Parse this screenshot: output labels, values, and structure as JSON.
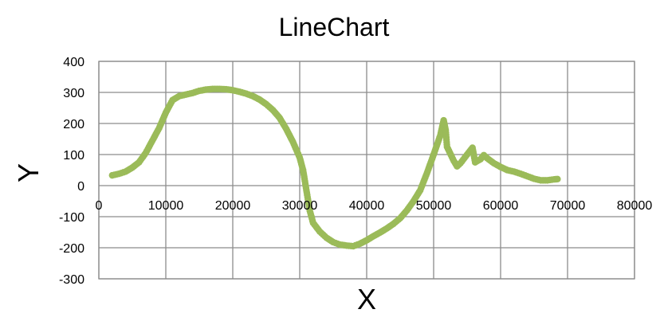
{
  "chart_data": {
    "type": "scatter",
    "title": "LineChart",
    "xlabel": "X",
    "ylabel": "Y",
    "xlim": [
      0,
      80000
    ],
    "ylim": [
      -300,
      400
    ],
    "x_ticks": [
      "0",
      "10000",
      "20000",
      "30000",
      "40000",
      "50000",
      "60000",
      "70000",
      "80000"
    ],
    "y_ticks": [
      "400",
      "300",
      "200",
      "100",
      "0",
      "-100",
      "-200",
      "-300"
    ],
    "grid": true,
    "legend": "none",
    "colors": {
      "series": "#9bbb59",
      "grid": "#8c8c8c"
    },
    "series": [
      {
        "points": [
          [
            2000,
            33
          ],
          [
            3000,
            38
          ],
          [
            4000,
            45
          ],
          [
            5000,
            58
          ],
          [
            6000,
            75
          ],
          [
            7000,
            105
          ],
          [
            8000,
            145
          ],
          [
            9000,
            185
          ],
          [
            10000,
            235
          ],
          [
            11000,
            275
          ],
          [
            12000,
            288
          ],
          [
            13000,
            293
          ],
          [
            14000,
            298
          ],
          [
            15000,
            305
          ],
          [
            16000,
            309
          ],
          [
            17000,
            311
          ],
          [
            18000,
            311
          ],
          [
            19000,
            310
          ],
          [
            20000,
            307
          ],
          [
            21000,
            302
          ],
          [
            22000,
            296
          ],
          [
            23000,
            288
          ],
          [
            24000,
            277
          ],
          [
            25000,
            262
          ],
          [
            26000,
            243
          ],
          [
            27000,
            218
          ],
          [
            28000,
            182
          ],
          [
            29000,
            140
          ],
          [
            30000,
            90
          ],
          [
            30500,
            50
          ],
          [
            31000,
            -15
          ],
          [
            31500,
            -80
          ],
          [
            32000,
            -120
          ],
          [
            33000,
            -148
          ],
          [
            34000,
            -168
          ],
          [
            35000,
            -182
          ],
          [
            36000,
            -190
          ],
          [
            37000,
            -193
          ],
          [
            38000,
            -195
          ],
          [
            39000,
            -187
          ],
          [
            40000,
            -176
          ],
          [
            41000,
            -163
          ],
          [
            42000,
            -151
          ],
          [
            43000,
            -138
          ],
          [
            44000,
            -123
          ],
          [
            45000,
            -105
          ],
          [
            46000,
            -80
          ],
          [
            47000,
            -50
          ],
          [
            48000,
            -15
          ],
          [
            49000,
            40
          ],
          [
            50000,
            100
          ],
          [
            51000,
            162
          ],
          [
            51500,
            210
          ],
          [
            51800,
            178
          ],
          [
            52000,
            125
          ],
          [
            53000,
            80
          ],
          [
            53500,
            62
          ],
          [
            54000,
            72
          ],
          [
            55000,
            100
          ],
          [
            55800,
            122
          ],
          [
            56200,
            75
          ],
          [
            57000,
            85
          ],
          [
            57500,
            98
          ],
          [
            58000,
            88
          ],
          [
            59000,
            72
          ],
          [
            60000,
            60
          ],
          [
            61000,
            50
          ],
          [
            62000,
            45
          ],
          [
            63000,
            38
          ],
          [
            64000,
            30
          ],
          [
            65000,
            22
          ],
          [
            66000,
            17
          ],
          [
            67000,
            17
          ],
          [
            68000,
            20
          ],
          [
            68500,
            21
          ]
        ]
      }
    ]
  }
}
